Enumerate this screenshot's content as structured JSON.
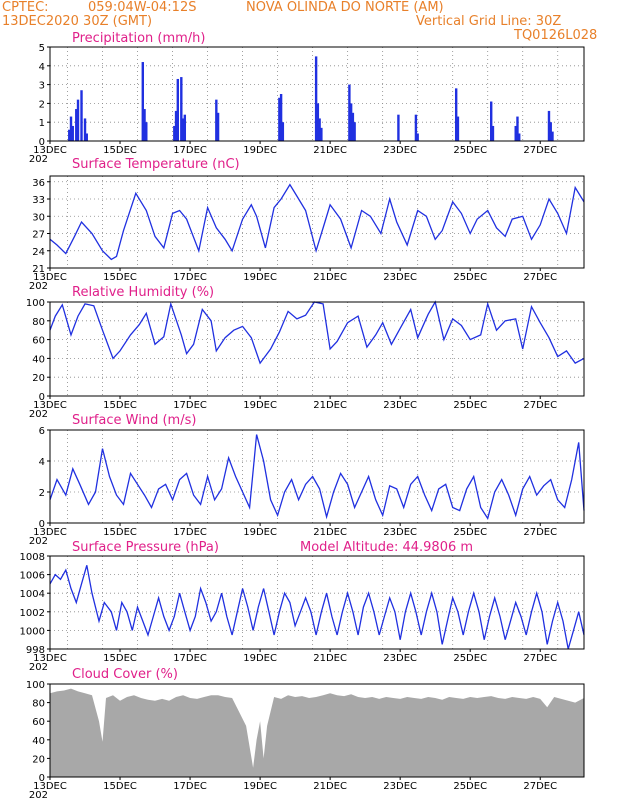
{
  "header": {
    "source": "CPTEC:",
    "coords": "059:04W-04:12S",
    "station": "NOVA OLINDA DO NORTE (AM)",
    "init_time": "13DEC2020 30Z (GMT)",
    "grid_note": "Vertical Grid Line: 30Z",
    "code": "TQ0126L028"
  },
  "accent_colors": {
    "header": "#e8802a",
    "panel_title": "#e0208a",
    "series": "#2030e0",
    "cloud": "#a8a8a8"
  },
  "x_axis": {
    "date_labels": [
      "13DEC",
      "15DEC",
      "17DEC",
      "19DEC",
      "21DEC",
      "23DEC",
      "25DEC",
      "27DEC"
    ],
    "year_fragment": "202",
    "range_days": [
      0,
      15.25
    ]
  },
  "chart_data": [
    {
      "id": "precipitation",
      "type": "bar",
      "title": "Precipitation (mm/h)",
      "ylim": [
        0,
        5
      ],
      "yticks": [
        0,
        1,
        2,
        3,
        4,
        5
      ],
      "grid": true,
      "x_unit": "days since 13DEC",
      "x": [
        0.55,
        0.6,
        0.65,
        0.75,
        0.8,
        0.9,
        1.0,
        1.05,
        2.65,
        2.7,
        2.75,
        3.55,
        3.6,
        3.65,
        3.75,
        3.8,
        3.85,
        4.75,
        4.8,
        6.55,
        6.6,
        6.65,
        7.6,
        7.65,
        7.7,
        7.75,
        8.55,
        8.6,
        8.65,
        8.7,
        9.95,
        10.45,
        10.5,
        11.6,
        11.65,
        12.6,
        12.65,
        13.3,
        13.35,
        13.4,
        14.25,
        14.3,
        14.35
      ],
      "values": [
        0.6,
        1.3,
        0.8,
        1.7,
        2.2,
        2.7,
        1.2,
        0.4,
        4.2,
        1.7,
        1.0,
        0.8,
        1.6,
        3.3,
        3.4,
        1.2,
        1.4,
        2.2,
        1.5,
        2.3,
        2.5,
        1.0,
        4.5,
        2.0,
        1.2,
        0.7,
        3.0,
        2.0,
        1.5,
        1.0,
        1.4,
        1.4,
        0.4,
        2.8,
        1.3,
        2.1,
        0.8,
        0.8,
        1.3,
        0.4,
        1.6,
        1.0,
        0.5
      ]
    },
    {
      "id": "surface_temperature",
      "type": "line",
      "title": "Surface Temperature (nC)",
      "ylim": [
        21,
        37
      ],
      "yticks": [
        21,
        24,
        27,
        30,
        33,
        36
      ],
      "grid": true,
      "x_unit": "days since 13DEC",
      "x": [
        0,
        0.2,
        0.45,
        0.7,
        0.9,
        1.2,
        1.5,
        1.75,
        1.9,
        2.1,
        2.45,
        2.75,
        3.0,
        3.25,
        3.5,
        3.7,
        3.9,
        4.25,
        4.5,
        4.75,
        5.0,
        5.2,
        5.5,
        5.75,
        5.9,
        6.15,
        6.4,
        6.6,
        6.85,
        7.05,
        7.3,
        7.6,
        7.85,
        8.0,
        8.3,
        8.6,
        8.9,
        9.15,
        9.45,
        9.7,
        9.9,
        10.2,
        10.5,
        10.75,
        11.0,
        11.2,
        11.5,
        11.75,
        12.0,
        12.2,
        12.5,
        12.75,
        13.0,
        13.2,
        13.5,
        13.75,
        14.0,
        14.25,
        14.5,
        14.75,
        15.0,
        15.25
      ],
      "values": [
        26,
        25,
        23.5,
        26.5,
        29,
        27,
        24,
        22.5,
        23,
        27.5,
        34,
        31,
        26.5,
        24.5,
        30.5,
        31,
        29.5,
        24,
        31.5,
        28,
        26,
        24,
        29.5,
        32,
        30,
        24.5,
        31.5,
        33,
        35.5,
        33.5,
        31,
        24,
        29,
        32,
        29.5,
        24.5,
        31,
        30,
        27,
        33,
        29,
        25,
        31,
        30,
        26,
        27.5,
        32.5,
        30.5,
        27,
        29.5,
        31,
        28,
        26.5,
        29.5,
        30,
        26,
        28.5,
        33,
        30.5,
        27,
        35,
        32.5
      ]
    },
    {
      "id": "relative_humidity",
      "type": "line",
      "title": "Relative Humidity (%)",
      "ylim": [
        0,
        100
      ],
      "yticks": [
        0,
        20,
        40,
        60,
        80,
        100
      ],
      "grid": true,
      "x_unit": "days since 13DEC",
      "x": [
        0,
        0.15,
        0.35,
        0.6,
        0.8,
        1.0,
        1.25,
        1.5,
        1.8,
        2.0,
        2.3,
        2.55,
        2.75,
        3.0,
        3.25,
        3.45,
        3.75,
        3.9,
        4.1,
        4.35,
        4.6,
        4.75,
        5.0,
        5.25,
        5.5,
        5.75,
        6.0,
        6.3,
        6.55,
        6.8,
        7.05,
        7.3,
        7.55,
        7.8,
        8.0,
        8.2,
        8.5,
        8.8,
        9.05,
        9.3,
        9.5,
        9.75,
        10.0,
        10.3,
        10.5,
        10.8,
        11.0,
        11.25,
        11.5,
        11.75,
        12.0,
        12.3,
        12.5,
        12.75,
        13.0,
        13.3,
        13.5,
        13.75,
        14.0,
        14.25,
        14.5,
        14.75,
        15.0,
        15.25
      ],
      "values": [
        70,
        85,
        97,
        65,
        85,
        98,
        96,
        70,
        40,
        48,
        65,
        76,
        88,
        55,
        63,
        98,
        65,
        45,
        55,
        92,
        80,
        48,
        62,
        70,
        74,
        62,
        35,
        50,
        68,
        90,
        82,
        86,
        100,
        98,
        50,
        58,
        78,
        85,
        52,
        65,
        78,
        55,
        72,
        92,
        62,
        87,
        100,
        60,
        82,
        75,
        60,
        65,
        98,
        70,
        80,
        82,
        50,
        95,
        78,
        62,
        42,
        48,
        35,
        40
      ]
    },
    {
      "id": "surface_wind",
      "type": "line",
      "title": "Surface Wind (m/s)",
      "ylim": [
        0,
        6
      ],
      "yticks": [
        0,
        2,
        4,
        6
      ],
      "grid": true,
      "x_unit": "days since 13DEC",
      "x": [
        0,
        0.2,
        0.45,
        0.65,
        0.85,
        1.1,
        1.3,
        1.5,
        1.7,
        1.9,
        2.1,
        2.3,
        2.5,
        2.7,
        2.9,
        3.1,
        3.3,
        3.5,
        3.7,
        3.9,
        4.1,
        4.3,
        4.5,
        4.7,
        4.9,
        5.1,
        5.3,
        5.5,
        5.7,
        5.9,
        6.1,
        6.3,
        6.5,
        6.7,
        6.9,
        7.1,
        7.3,
        7.5,
        7.7,
        7.9,
        8.1,
        8.3,
        8.5,
        8.7,
        8.9,
        9.1,
        9.3,
        9.5,
        9.7,
        9.9,
        10.1,
        10.3,
        10.5,
        10.7,
        10.9,
        11.1,
        11.3,
        11.5,
        11.7,
        11.9,
        12.1,
        12.3,
        12.5,
        12.7,
        12.9,
        13.1,
        13.3,
        13.5,
        13.7,
        13.9,
        14.1,
        14.3,
        14.5,
        14.7,
        14.9,
        15.1,
        15.25
      ],
      "values": [
        1.5,
        2.8,
        1.8,
        3.5,
        2.5,
        1.2,
        2.0,
        4.8,
        3.0,
        1.8,
        1.2,
        3.2,
        2.5,
        1.8,
        1.0,
        2.2,
        2.5,
        1.5,
        2.8,
        3.2,
        1.8,
        1.2,
        3.0,
        1.5,
        2.2,
        4.2,
        3.0,
        2.0,
        1.0,
        5.7,
        4.0,
        1.5,
        0.5,
        2.0,
        2.8,
        1.5,
        2.5,
        3.0,
        2.2,
        0.4,
        2.0,
        3.2,
        2.5,
        1.0,
        2.0,
        3.0,
        1.5,
        0.5,
        2.4,
        2.2,
        1.0,
        2.5,
        3.0,
        1.8,
        0.8,
        2.2,
        2.5,
        1.0,
        0.8,
        2.2,
        3.0,
        1.0,
        0.3,
        2.0,
        2.8,
        1.8,
        0.5,
        2.2,
        3.0,
        1.8,
        2.4,
        2.8,
        1.5,
        1.0,
        2.8,
        5.2,
        0.8
      ]
    },
    {
      "id": "surface_pressure",
      "type": "line",
      "title": "Surface Pressure (hPa)",
      "annotation": "Model Altitude: 44.9806 m",
      "ylim": [
        998,
        1008
      ],
      "yticks": [
        998,
        1000,
        1002,
        1004,
        1006,
        1008
      ],
      "grid": true,
      "x_unit": "days since 13DEC",
      "x": [
        0,
        0.15,
        0.3,
        0.45,
        0.6,
        0.75,
        0.9,
        1.05,
        1.2,
        1.4,
        1.55,
        1.75,
        1.9,
        2.05,
        2.2,
        2.35,
        2.5,
        2.65,
        2.8,
        2.95,
        3.1,
        3.25,
        3.4,
        3.55,
        3.7,
        3.85,
        4.0,
        4.15,
        4.3,
        4.45,
        4.6,
        4.75,
        4.9,
        5.05,
        5.2,
        5.35,
        5.5,
        5.65,
        5.8,
        5.95,
        6.1,
        6.25,
        6.4,
        6.55,
        6.7,
        6.85,
        7.0,
        7.15,
        7.3,
        7.45,
        7.6,
        7.75,
        7.9,
        8.05,
        8.2,
        8.35,
        8.5,
        8.65,
        8.8,
        8.95,
        9.1,
        9.25,
        9.4,
        9.55,
        9.7,
        9.85,
        10.0,
        10.15,
        10.3,
        10.45,
        10.6,
        10.75,
        10.9,
        11.05,
        11.2,
        11.35,
        11.5,
        11.65,
        11.8,
        11.95,
        12.1,
        12.25,
        12.4,
        12.55,
        12.7,
        12.85,
        13.0,
        13.15,
        13.3,
        13.45,
        13.6,
        13.75,
        13.9,
        14.05,
        14.2,
        14.35,
        14.5,
        14.65,
        14.8,
        14.95,
        15.1,
        15.25
      ],
      "values": [
        1005,
        1006,
        1005.5,
        1006.5,
        1004.5,
        1003,
        1005,
        1007,
        1004,
        1001,
        1003,
        1002,
        1000,
        1003,
        1002,
        1000,
        1002.5,
        1001,
        999.5,
        1001.5,
        1003.5,
        1001.5,
        1000,
        1001.5,
        1004,
        1002,
        1000,
        1001.5,
        1004.5,
        1003,
        1001,
        1002,
        1004,
        1001.5,
        999.5,
        1002,
        1004.5,
        1002.5,
        1000,
        1002.5,
        1004.5,
        1002,
        999.5,
        1002,
        1004,
        1003,
        1000.5,
        1002,
        1003.5,
        1002,
        999.5,
        1002,
        1004,
        1001.5,
        999.5,
        1002,
        1004,
        1002,
        999.5,
        1002.5,
        1004,
        1002,
        999.5,
        1001.5,
        1003.5,
        1002,
        999,
        1002,
        1004,
        1002,
        999.5,
        1002,
        1004,
        1002,
        998.5,
        1001,
        1003.5,
        1002,
        999.5,
        1002,
        1004,
        1002,
        999,
        1001.5,
        1003.5,
        1001.5,
        999,
        1001,
        1003,
        1001.5,
        999.5,
        1002,
        1004,
        1002,
        998.5,
        1001,
        1003,
        1001,
        998,
        1000,
        1002,
        999.5
      ]
    },
    {
      "id": "cloud_cover",
      "type": "area",
      "title": "Cloud Cover (%)",
      "ylim": [
        0,
        100
      ],
      "yticks": [
        0,
        20,
        40,
        60,
        80,
        100
      ],
      "grid": false,
      "x_unit": "days since 13DEC",
      "x": [
        0,
        0.2,
        0.4,
        0.6,
        0.8,
        1.0,
        1.2,
        1.4,
        1.5,
        1.6,
        1.8,
        2.0,
        2.2,
        2.4,
        2.6,
        2.8,
        3.0,
        3.2,
        3.4,
        3.6,
        3.8,
        4.0,
        4.2,
        4.4,
        4.6,
        4.8,
        5.0,
        5.2,
        5.4,
        5.6,
        5.8,
        5.9,
        6.0,
        6.1,
        6.2,
        6.4,
        6.6,
        6.8,
        7.0,
        7.2,
        7.4,
        7.6,
        7.8,
        8.0,
        8.2,
        8.4,
        8.6,
        8.8,
        9.0,
        9.2,
        9.4,
        9.6,
        9.8,
        10.0,
        10.2,
        10.4,
        10.6,
        10.8,
        11.0,
        11.2,
        11.4,
        11.6,
        11.8,
        12.0,
        12.2,
        12.4,
        12.6,
        12.8,
        13.0,
        13.2,
        13.4,
        13.6,
        13.8,
        14.0,
        14.2,
        14.4,
        14.6,
        14.8,
        15.0,
        15.25
      ],
      "values": [
        90,
        92,
        93,
        95,
        92,
        90,
        88,
        60,
        38,
        85,
        88,
        82,
        86,
        88,
        85,
        83,
        82,
        84,
        82,
        86,
        88,
        85,
        84,
        86,
        88,
        88,
        86,
        85,
        70,
        55,
        10,
        40,
        60,
        20,
        55,
        86,
        84,
        88,
        86,
        87,
        85,
        86,
        88,
        90,
        88,
        87,
        89,
        86,
        85,
        86,
        84,
        86,
        85,
        84,
        86,
        85,
        84,
        86,
        85,
        83,
        86,
        85,
        84,
        86,
        85,
        86,
        87,
        85,
        84,
        86,
        85,
        84,
        86,
        84,
        75,
        86,
        84,
        82,
        80,
        85
      ]
    }
  ]
}
